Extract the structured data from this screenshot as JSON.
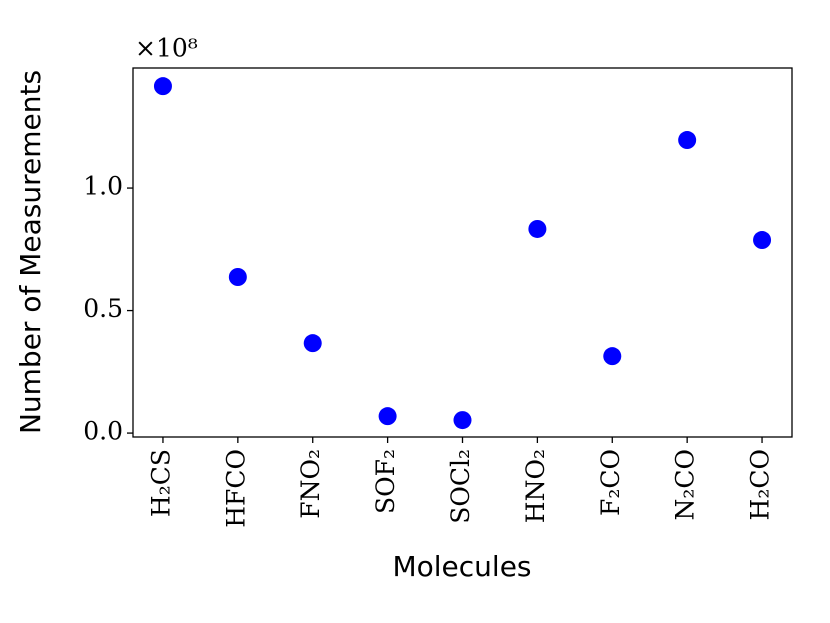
{
  "chart_data": {
    "type": "scatter",
    "x_label": "Molecules",
    "y_label": "Number of Measurements",
    "y_offset_label": "×10⁸",
    "categories": [
      "H₂CS",
      "HFCO",
      "FNO₂",
      "SOF₂",
      "SOCl₂",
      "HNO₂",
      "F₂CO",
      "N₂CO",
      "H₂CO"
    ],
    "values": [
      1.416,
      0.637,
      0.367,
      0.069,
      0.053,
      0.833,
      0.314,
      1.196,
      0.788
    ],
    "color": "#0000ff",
    "ylim": [
      -0.016,
      1.49
    ],
    "yticks": [
      {
        "value": 0,
        "label": "0.0"
      },
      {
        "value": 0.5,
        "label": "0.5"
      },
      {
        "value": 1,
        "label": "1.0"
      }
    ],
    "grid": false
  }
}
